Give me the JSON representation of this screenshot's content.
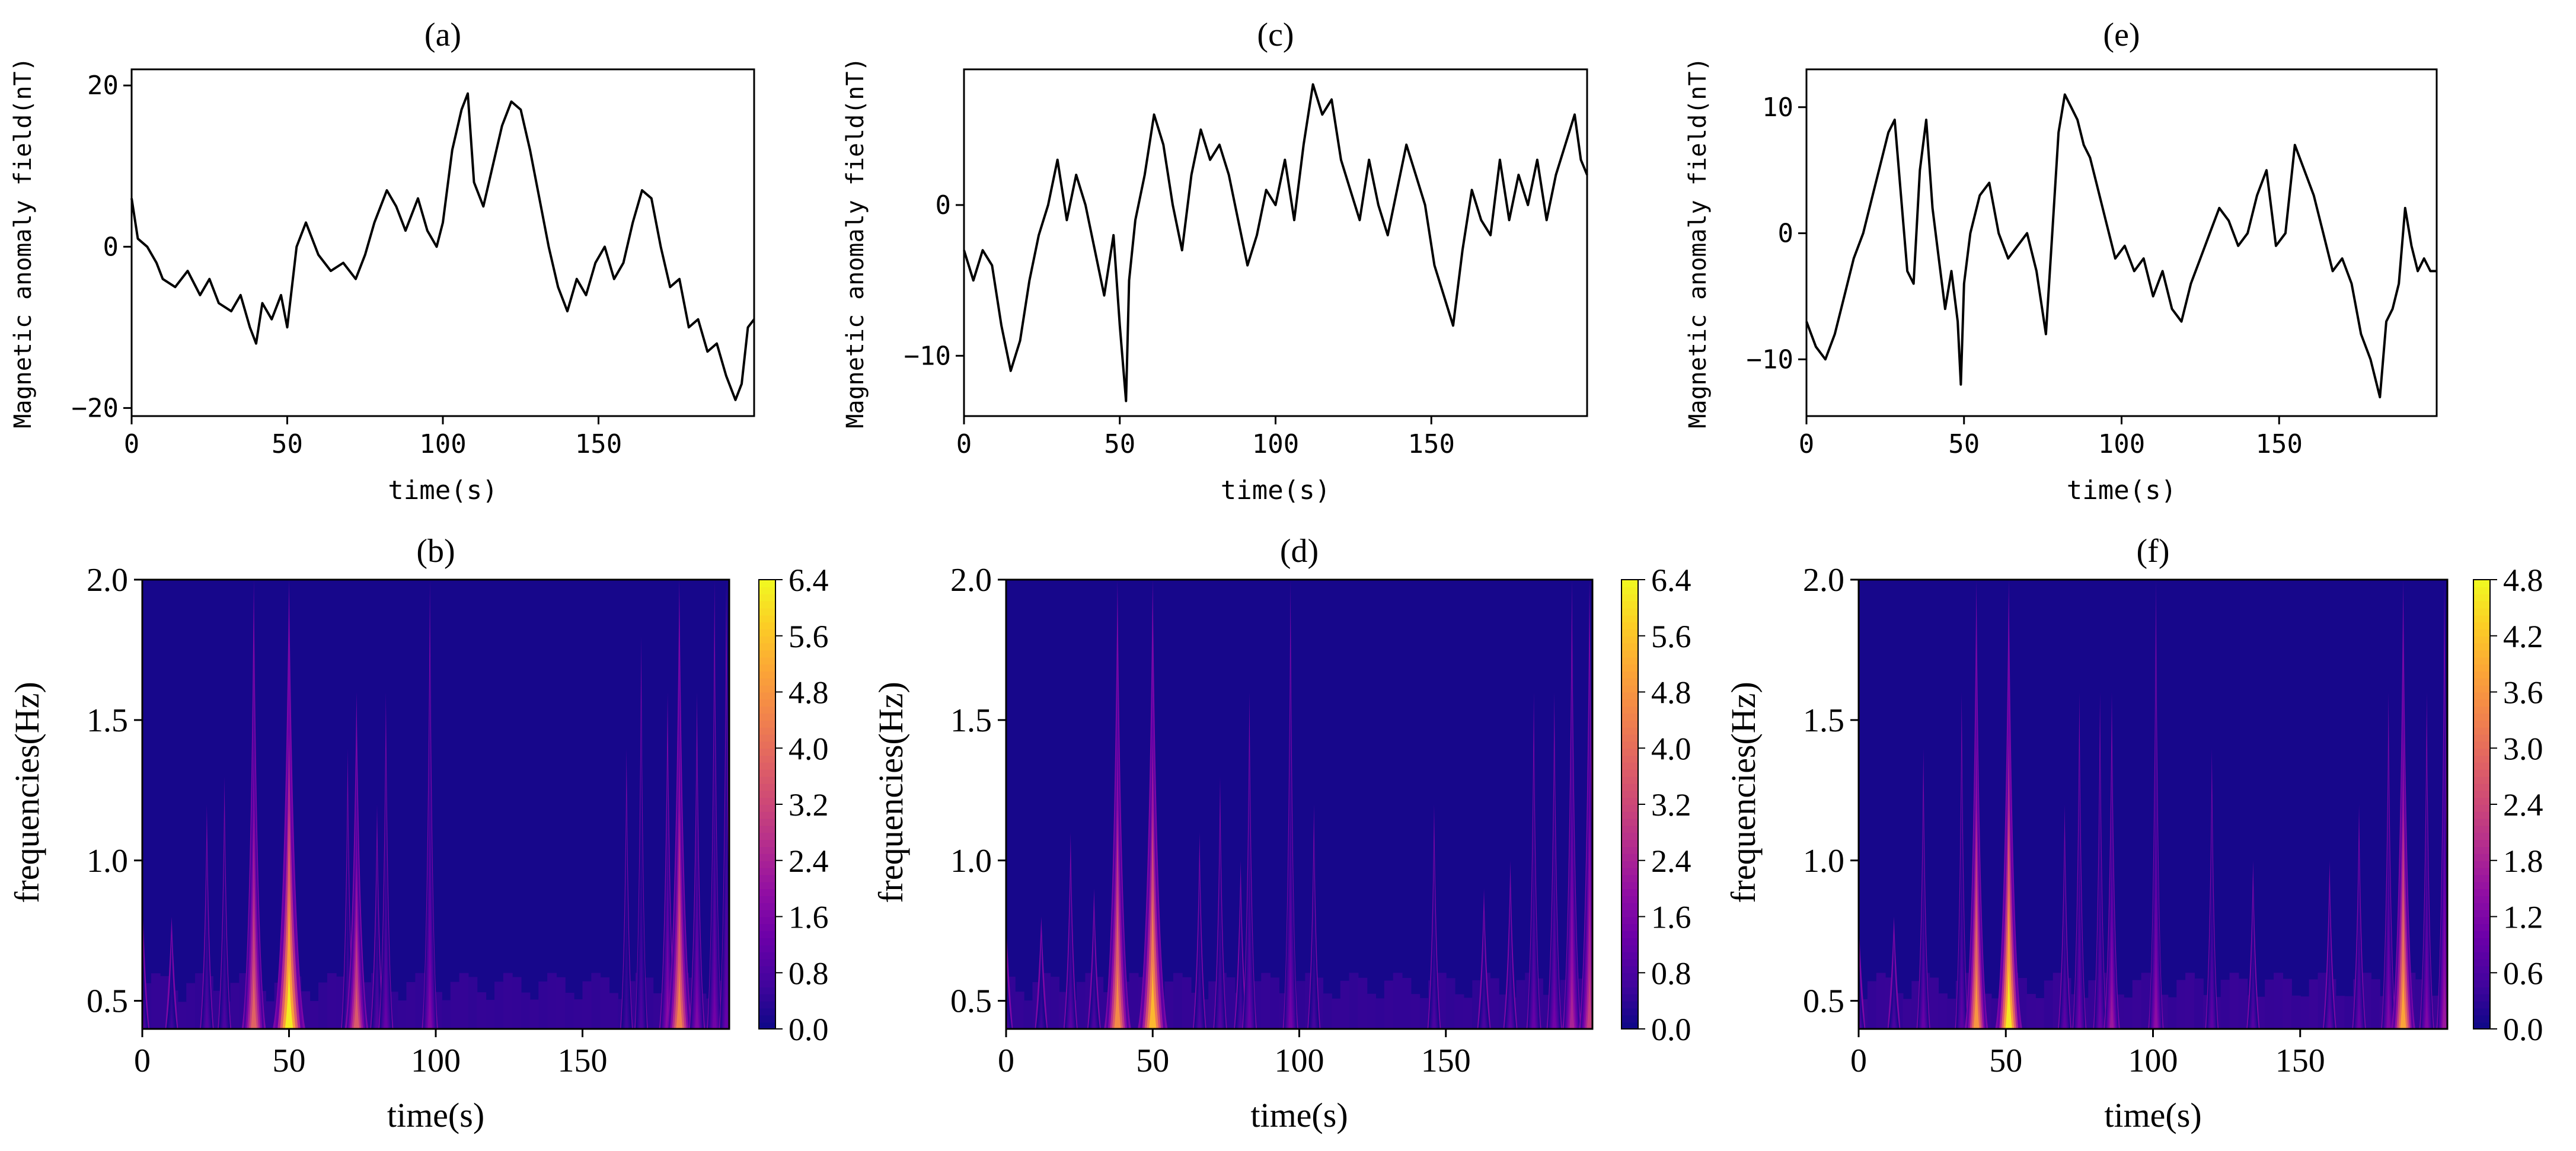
{
  "figure": {
    "top_row": [
      {
        "id": "a",
        "title": "(a)"
      },
      {
        "id": "c",
        "title": "(c)"
      },
      {
        "id": "e",
        "title": "(e)"
      }
    ],
    "bottom_row": [
      {
        "id": "b",
        "title": "(b)"
      },
      {
        "id": "d",
        "title": "(d)"
      },
      {
        "id": "f",
        "title": "(f)"
      }
    ]
  },
  "chart_data": [
    {
      "id": "a",
      "type": "line",
      "title": "(a)",
      "xlabel": "time(s)",
      "ylabel": "Magnetic anomaly field(nT)",
      "xlim": [
        0,
        200
      ],
      "ylim": [
        -21,
        22
      ],
      "xticks": [
        0,
        50,
        100,
        150
      ],
      "yticks": [
        -20,
        0,
        20
      ],
      "x": [
        0,
        2,
        5,
        8,
        10,
        14,
        18,
        22,
        25,
        28,
        32,
        35,
        38,
        40,
        42,
        45,
        48,
        50,
        53,
        56,
        60,
        64,
        68,
        72,
        75,
        78,
        82,
        85,
        88,
        90,
        92,
        95,
        98,
        100,
        103,
        106,
        108,
        110,
        113,
        116,
        119,
        122,
        125,
        128,
        131,
        134,
        137,
        140,
        143,
        146,
        149,
        152,
        155,
        158,
        161,
        164,
        167,
        170,
        173,
        176,
        179,
        182,
        185,
        188,
        191,
        194,
        196,
        198,
        200
      ],
      "y": [
        6,
        1,
        0,
        -2,
        -4,
        -5,
        -3,
        -6,
        -4,
        -7,
        -8,
        -6,
        -10,
        -12,
        -7,
        -9,
        -6,
        -10,
        0,
        3,
        -1,
        -3,
        -2,
        -4,
        -1,
        3,
        7,
        5,
        2,
        4,
        6,
        2,
        0,
        3,
        12,
        17,
        19,
        8,
        5,
        10,
        15,
        18,
        17,
        12,
        6,
        0,
        -5,
        -8,
        -4,
        -6,
        -2,
        0,
        -4,
        -2,
        3,
        7,
        6,
        0,
        -5,
        -4,
        -10,
        -9,
        -13,
        -12,
        -16,
        -19,
        -17,
        -10,
        -9
      ]
    },
    {
      "id": "c",
      "type": "line",
      "title": "(c)",
      "xlabel": "time(s)",
      "ylabel": "Magnetic anomaly field(nT)",
      "xlim": [
        0,
        200
      ],
      "ylim": [
        -14,
        9
      ],
      "xticks": [
        0,
        50,
        100,
        150
      ],
      "yticks": [
        -10,
        0
      ],
      "x": [
        0,
        3,
        6,
        9,
        12,
        15,
        18,
        21,
        24,
        27,
        30,
        33,
        36,
        39,
        42,
        45,
        48,
        50,
        52,
        53,
        55,
        58,
        61,
        64,
        67,
        70,
        73,
        76,
        79,
        82,
        85,
        88,
        91,
        94,
        97,
        100,
        103,
        106,
        109,
        112,
        115,
        118,
        121,
        124,
        127,
        130,
        133,
        136,
        139,
        142,
        145,
        148,
        151,
        154,
        157,
        160,
        163,
        166,
        169,
        172,
        175,
        178,
        181,
        184,
        187,
        190,
        193,
        196,
        198,
        200
      ],
      "y": [
        -3,
        -5,
        -3,
        -4,
        -8,
        -11,
        -9,
        -5,
        -2,
        0,
        3,
        -1,
        2,
        0,
        -3,
        -6,
        -2,
        -8,
        -13,
        -5,
        -1,
        2,
        6,
        4,
        0,
        -3,
        2,
        5,
        3,
        4,
        2,
        -1,
        -4,
        -2,
        1,
        0,
        3,
        -1,
        4,
        8,
        6,
        7,
        3,
        1,
        -1,
        3,
        0,
        -2,
        1,
        4,
        2,
        0,
        -4,
        -6,
        -8,
        -3,
        1,
        -1,
        -2,
        3,
        -1,
        2,
        0,
        3,
        -1,
        2,
        4,
        6,
        3,
        2
      ]
    },
    {
      "id": "e",
      "type": "line",
      "title": "(e)",
      "xlabel": "time(s)",
      "ylabel": "Magnetic anomaly field(nT)",
      "xlim": [
        0,
        200
      ],
      "ylim": [
        -14.5,
        13
      ],
      "xticks": [
        0,
        50,
        100,
        150
      ],
      "yticks": [
        -10,
        0,
        10
      ],
      "x": [
        0,
        3,
        6,
        9,
        12,
        15,
        18,
        21,
        24,
        26,
        28,
        30,
        32,
        34,
        36,
        38,
        40,
        42,
        44,
        46,
        48,
        49,
        50,
        52,
        55,
        58,
        61,
        64,
        67,
        70,
        73,
        76,
        78,
        80,
        82,
        84,
        86,
        88,
        90,
        92,
        95,
        98,
        101,
        104,
        107,
        110,
        113,
        116,
        119,
        122,
        125,
        128,
        131,
        134,
        137,
        140,
        143,
        146,
        149,
        152,
        155,
        158,
        161,
        164,
        167,
        170,
        173,
        176,
        179,
        182,
        184,
        186,
        188,
        190,
        192,
        194,
        196,
        198,
        200
      ],
      "y": [
        -7,
        -9,
        -10,
        -8,
        -5,
        -2,
        0,
        3,
        6,
        8,
        9,
        3,
        -3,
        -4,
        5,
        9,
        2,
        -2,
        -6,
        -3,
        -7,
        -12,
        -4,
        0,
        3,
        4,
        0,
        -2,
        -1,
        0,
        -3,
        -8,
        0,
        8,
        11,
        10,
        9,
        7,
        6,
        4,
        1,
        -2,
        -1,
        -3,
        -2,
        -5,
        -3,
        -6,
        -7,
        -4,
        -2,
        0,
        2,
        1,
        -1,
        0,
        3,
        5,
        -1,
        0,
        7,
        5,
        3,
        0,
        -3,
        -2,
        -4,
        -8,
        -10,
        -13,
        -7,
        -6,
        -4,
        2,
        -1,
        -3,
        -2,
        -3,
        -3
      ]
    },
    {
      "id": "b",
      "type": "heatmap",
      "title": "(b)",
      "xlabel": "time(s)",
      "ylabel": "frequencies(Hz)",
      "xlim": [
        0,
        200
      ],
      "ylim": [
        0.4,
        2.0
      ],
      "xticks": [
        0,
        50,
        100,
        150
      ],
      "yticks": [
        0.5,
        1.0,
        1.5,
        2.0
      ],
      "colorbar": {
        "range": [
          0,
          6.4
        ],
        "ticks": [
          "0.0",
          "0.8",
          "1.6",
          "2.4",
          "3.2",
          "4.0",
          "4.8",
          "5.6",
          "6.4"
        ]
      },
      "energy_time_s": [
        0,
        10,
        22,
        28,
        38,
        50,
        70,
        73,
        80,
        83,
        98,
        165,
        170,
        179,
        183,
        189,
        195,
        199
      ],
      "energy_peak_amplitude": [
        1.0,
        0.6,
        0.9,
        0.8,
        3.8,
        6.2,
        0.8,
        3.6,
        0.9,
        1.2,
        1.6,
        0.6,
        0.8,
        1.8,
        4.4,
        1.6,
        1.4,
        1.2
      ],
      "energy_max_freq_hz": [
        0.9,
        0.8,
        1.2,
        1.3,
        2.0,
        2.0,
        1.4,
        1.6,
        1.2,
        1.6,
        2.0,
        1.4,
        1.8,
        1.6,
        2.0,
        1.6,
        2.0,
        2.0
      ]
    },
    {
      "id": "d",
      "type": "heatmap",
      "title": "(d)",
      "xlabel": "time(s)",
      "ylabel": "frequencies(Hz)",
      "xlim": [
        0,
        200
      ],
      "ylim": [
        0.4,
        2.0
      ],
      "xticks": [
        0,
        50,
        100,
        150
      ],
      "yticks": [
        0.5,
        1.0,
        1.5,
        2.0
      ],
      "colorbar": {
        "range": [
          0,
          6.4
        ],
        "ticks": [
          "0.0",
          "0.8",
          "1.6",
          "2.4",
          "3.2",
          "4.0",
          "4.8",
          "5.6",
          "6.4"
        ]
      },
      "energy_time_s": [
        0,
        12,
        22,
        30,
        38,
        50,
        66,
        73,
        80,
        83,
        97,
        105,
        146,
        163,
        172,
        180,
        187,
        193,
        199
      ],
      "energy_peak_amplitude": [
        0.8,
        0.6,
        1.0,
        0.8,
        4.6,
        5.4,
        0.8,
        0.9,
        0.8,
        1.2,
        1.4,
        0.7,
        0.8,
        0.8,
        1.0,
        1.2,
        1.4,
        2.4,
        3.0
      ],
      "energy_max_freq_hz": [
        0.8,
        0.8,
        1.1,
        0.9,
        2.0,
        2.0,
        1.1,
        1.3,
        1.0,
        1.6,
        2.0,
        1.2,
        1.2,
        0.9,
        1.0,
        1.6,
        1.6,
        2.0,
        2.0
      ]
    },
    {
      "id": "f",
      "type": "heatmap",
      "title": "(f)",
      "xlabel": "time(s)",
      "ylabel": "frequencies(Hz)",
      "xlim": [
        0,
        200
      ],
      "ylim": [
        0.4,
        2.0
      ],
      "xticks": [
        0,
        50,
        100,
        150
      ],
      "yticks": [
        0.5,
        1.0,
        1.5,
        2.0
      ],
      "colorbar": {
        "range": [
          0,
          4.8
        ],
        "ticks": [
          "0.0",
          "0.6",
          "1.2",
          "1.8",
          "2.4",
          "3.0",
          "3.6",
          "4.2",
          "4.8"
        ]
      },
      "energy_time_s": [
        0,
        12,
        22,
        35,
        40,
        51,
        70,
        75,
        82,
        86,
        101,
        120,
        134,
        160,
        170,
        180,
        185,
        193,
        199
      ],
      "energy_peak_amplitude": [
        0.8,
        0.6,
        0.9,
        0.8,
        3.6,
        4.6,
        0.8,
        1.0,
        0.9,
        1.6,
        1.4,
        0.8,
        0.7,
        0.8,
        0.9,
        1.2,
        3.8,
        1.2,
        1.6
      ],
      "energy_max_freq_hz": [
        0.8,
        0.8,
        1.4,
        1.6,
        2.0,
        2.0,
        1.2,
        1.6,
        1.6,
        1.6,
        2.0,
        1.4,
        1.0,
        1.0,
        1.2,
        1.6,
        2.0,
        1.6,
        2.0
      ]
    }
  ]
}
